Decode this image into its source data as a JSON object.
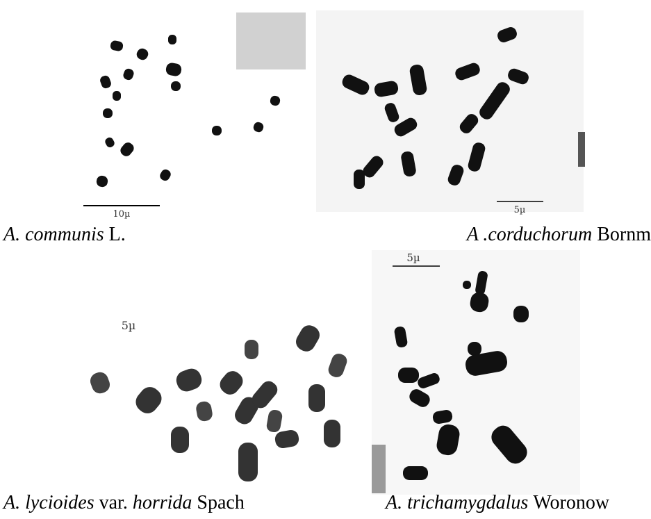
{
  "panels": [
    {
      "scale_label": "10µ",
      "caption": [
        {
          "text": "A. communis",
          "italic": true
        },
        {
          "text": "L.",
          "italic": false
        }
      ]
    },
    {
      "scale_label": "5µ",
      "caption": [
        {
          "text": "A .corduchorum",
          "italic": true
        },
        {
          "text": "Bornm",
          "italic": false
        }
      ]
    },
    {
      "scale_label": "5µ",
      "caption": [
        {
          "text": "A. lycioides",
          "italic": true
        },
        {
          "text": "var.",
          "italic": false
        },
        {
          "text": "horrida",
          "italic": true
        },
        {
          "text": "Spach",
          "italic": false
        }
      ]
    },
    {
      "scale_label": "5µ",
      "caption": [
        {
          "text": "A. trichamygdalus",
          "italic": true
        },
        {
          "text": "Woronow",
          "italic": false
        }
      ]
    }
  ]
}
